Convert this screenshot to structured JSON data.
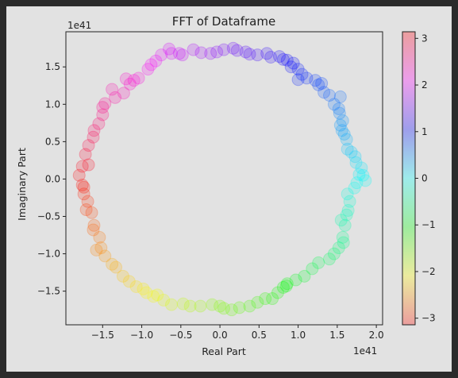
{
  "chart_data": {
    "type": "scatter",
    "title": "FFT of Dataframe",
    "xlabel": "Real Part",
    "ylabel": "Imaginary Part",
    "x_offset_label": "1e41",
    "y_offset_label": "1e41",
    "xlim": [
      -1.97,
      2.08
    ],
    "ylim": [
      -1.95,
      1.97
    ],
    "x_ticks": [
      "−1.5",
      "−1.0",
      "−0.5",
      "0.0",
      "0.5",
      "1.0",
      "1.5",
      "2.0"
    ],
    "x_tick_values": [
      -1.5,
      -1.0,
      -0.5,
      0.0,
      0.5,
      1.0,
      1.5,
      2.0
    ],
    "y_ticks": [
      "−1.5",
      "−1.0",
      "−0.5",
      "0.0",
      "0.5",
      "1.0",
      "1.5"
    ],
    "y_tick_values": [
      -1.5,
      -1.0,
      -0.5,
      0.0,
      0.5,
      1.0,
      1.5
    ],
    "colorbar": {
      "colormap": "hsv",
      "range": [
        -3.14159,
        3.14159
      ],
      "ticks": [
        "3",
        "2",
        "1",
        "0",
        "−1",
        "−2",
        "−3"
      ],
      "tick_values": [
        3,
        2,
        1,
        0,
        -1,
        -2,
        -3
      ],
      "alpha": 0.3
    },
    "grid": false,
    "marker_alpha": 0.2,
    "color_by": "phase angle",
    "points": [
      [
        1.83,
        0.05
      ],
      [
        1.86,
        -0.02
      ],
      [
        1.78,
        0.06
      ],
      [
        1.81,
        0.15
      ],
      [
        1.74,
        0.22
      ],
      [
        1.73,
        0.3
      ],
      [
        1.68,
        0.36
      ],
      [
        1.63,
        0.4
      ],
      [
        1.62,
        0.53
      ],
      [
        1.59,
        0.6
      ],
      [
        1.56,
        0.65
      ],
      [
        1.54,
        0.72
      ],
      [
        1.57,
        0.78
      ],
      [
        1.53,
        0.88
      ],
      [
        1.52,
        0.94
      ],
      [
        1.46,
        1.0
      ],
      [
        1.4,
        1.12
      ],
      [
        1.33,
        1.16
      ],
      [
        1.26,
        1.26
      ],
      [
        1.22,
        1.32
      ],
      [
        1.11,
        1.35
      ],
      [
        1.0,
        1.33
      ],
      [
        1.05,
        1.4
      ],
      [
        1.0,
        1.47
      ],
      [
        0.91,
        1.5
      ],
      [
        0.86,
        1.59
      ],
      [
        0.81,
        1.6
      ],
      [
        0.76,
        1.64
      ],
      [
        0.65,
        1.63
      ],
      [
        0.6,
        1.68
      ],
      [
        0.48,
        1.66
      ],
      [
        0.38,
        1.67
      ],
      [
        0.22,
        1.72
      ],
      [
        0.17,
        1.75
      ],
      [
        0.05,
        1.73
      ],
      [
        -0.04,
        1.7
      ],
      [
        -0.12,
        1.68
      ],
      [
        -0.24,
        1.69
      ],
      [
        -0.34,
        1.73
      ],
      [
        -0.48,
        1.66
      ],
      [
        -0.62,
        1.68
      ],
      [
        -0.65,
        1.74
      ],
      [
        -0.75,
        1.66
      ],
      [
        -0.82,
        1.58
      ],
      [
        -0.88,
        1.53
      ],
      [
        -0.92,
        1.47
      ],
      [
        -1.04,
        1.35
      ],
      [
        -1.1,
        1.32
      ],
      [
        -1.15,
        1.27
      ],
      [
        -1.23,
        1.15
      ],
      [
        -1.34,
        1.09
      ],
      [
        -1.38,
        1.2
      ],
      [
        -1.47,
        1.01
      ],
      [
        -1.5,
        0.96
      ],
      [
        -1.5,
        0.86
      ],
      [
        -1.61,
        0.65
      ],
      [
        -1.62,
        0.56
      ],
      [
        -1.68,
        0.45
      ],
      [
        -1.72,
        0.33
      ],
      [
        -1.68,
        0.19
      ],
      [
        -1.76,
        0.17
      ],
      [
        -1.8,
        0.05
      ],
      [
        -1.76,
        -0.08
      ],
      [
        -1.74,
        -0.11
      ],
      [
        -1.69,
        -0.3
      ],
      [
        -1.71,
        -0.41
      ],
      [
        -1.64,
        -0.45
      ],
      [
        -1.61,
        -0.62
      ],
      [
        -1.62,
        -0.68
      ],
      [
        -1.54,
        -0.78
      ],
      [
        -1.52,
        -0.92
      ],
      [
        -1.47,
        -1.03
      ],
      [
        -1.38,
        -1.14
      ],
      [
        -1.33,
        -1.18
      ],
      [
        -1.24,
        -1.3
      ],
      [
        -1.16,
        -1.37
      ],
      [
        -1.07,
        -1.44
      ],
      [
        -0.98,
        -1.47
      ],
      [
        -0.94,
        -1.52
      ],
      [
        -0.85,
        -1.57
      ],
      [
        -0.72,
        -1.62
      ],
      [
        -0.62,
        -1.68
      ],
      [
        -0.47,
        -1.67
      ],
      [
        -0.38,
        -1.7
      ],
      [
        -0.25,
        -1.7
      ],
      [
        -0.1,
        -1.68
      ],
      [
        0.0,
        -1.7
      ],
      [
        0.15,
        -1.75
      ],
      [
        0.25,
        -1.72
      ],
      [
        0.38,
        -1.7
      ],
      [
        0.48,
        -1.65
      ],
      [
        0.58,
        -1.6
      ],
      [
        0.67,
        -1.6
      ],
      [
        0.74,
        -1.52
      ],
      [
        0.81,
        -1.45
      ],
      [
        0.86,
        -1.4
      ],
      [
        0.97,
        -1.35
      ],
      [
        1.08,
        -1.3
      ],
      [
        1.18,
        -1.2
      ],
      [
        1.26,
        -1.12
      ],
      [
        1.4,
        -1.07
      ],
      [
        1.46,
        -1.0
      ],
      [
        1.52,
        -0.92
      ],
      [
        1.58,
        -0.85
      ],
      [
        1.57,
        -0.78
      ],
      [
        1.6,
        -0.62
      ],
      [
        1.62,
        -0.48
      ],
      [
        1.64,
        -0.42
      ],
      [
        1.66,
        -0.3
      ],
      [
        1.63,
        -0.2
      ],
      [
        1.72,
        -0.12
      ],
      [
        1.75,
        -0.05
      ],
      [
        1.54,
        1.1
      ],
      [
        1.3,
        1.28
      ],
      [
        0.94,
        1.55
      ],
      [
        0.33,
        1.7
      ],
      [
        -0.52,
        1.68
      ],
      [
        -1.2,
        1.34
      ],
      [
        -1.55,
        0.74
      ],
      [
        -1.74,
        -0.2
      ],
      [
        -1.58,
        -0.95
      ],
      [
        -0.8,
        -1.55
      ],
      [
        0.05,
        -1.73
      ],
      [
        0.85,
        -1.43
      ],
      [
        1.55,
        -0.55
      ]
    ]
  }
}
